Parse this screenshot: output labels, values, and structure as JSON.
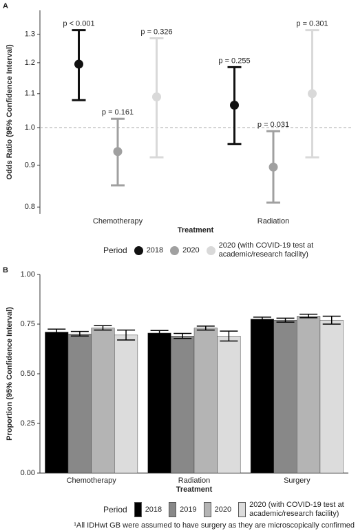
{
  "chart_data": [
    {
      "type": "errorpoint",
      "panel_label": "A",
      "y_label": "Odds Ratio (95% Confidence Interval)",
      "x_label": "Treatment",
      "categories": [
        "Chemotherapy",
        "Radiation"
      ],
      "log_y": true,
      "ylim": [
        0.785,
        1.39
      ],
      "yticks": [
        0.8,
        0.9,
        {
          "value": 1,
          "label": "1.0"
        },
        1.1,
        1.2,
        1.3
      ],
      "ref_line": 1,
      "legend_title": "Period",
      "series": [
        {
          "name": "2018",
          "color": "#111111",
          "values": [
            1.195,
            1.065
          ],
          "lower": [
            1.08,
            0.955
          ],
          "upper": [
            1.315,
            1.185
          ],
          "p_labels": [
            "p < 0.001",
            "p = 0.255"
          ]
        },
        {
          "name": "2020",
          "color": "#a0a0a0",
          "values": [
            0.935,
            0.895
          ],
          "lower": [
            0.85,
            0.81
          ],
          "upper": [
            1.025,
            0.99
          ],
          "p_labels": [
            "p = 0.161",
            "p = 0.031"
          ]
        },
        {
          "name": "2020 (with COVID-19 test at academic/research facility)",
          "color": "#d9d9d9",
          "values": [
            1.09,
            1.1
          ],
          "lower": [
            0.92,
            0.92
          ],
          "upper": [
            1.285,
            1.315
          ],
          "p_labels": [
            "p = 0.326",
            "p = 0.301"
          ]
        }
      ]
    },
    {
      "type": "bar",
      "panel_label": "B",
      "y_label": "Proportion (95% Confidence Interval)",
      "x_label": "Treatment",
      "categories": [
        "Chemotherapy",
        "Radiation",
        "Surgery"
      ],
      "ylim": [
        0,
        1
      ],
      "yticks": [
        {
          "value": 0,
          "label": "0.00"
        },
        {
          "value": 0.25,
          "label": "0.25"
        },
        {
          "value": 0.5,
          "label": "0.50"
        },
        {
          "value": 0.75,
          "label": "0.75"
        },
        {
          "value": 1,
          "label": "1.00"
        }
      ],
      "legend_title": "Period",
      "series": [
        {
          "name": "2018",
          "color": "#000000",
          "values": [
            0.71,
            0.705,
            0.775
          ],
          "lower": [
            0.7,
            0.695,
            0.765
          ],
          "upper": [
            0.725,
            0.718,
            0.785
          ]
        },
        {
          "name": "2019",
          "color": "#888888",
          "values": [
            0.7,
            0.69,
            0.77
          ],
          "lower": [
            0.69,
            0.678,
            0.76
          ],
          "upper": [
            0.713,
            0.703,
            0.78
          ]
        },
        {
          "name": "2020",
          "color": "#b4b4b4",
          "values": [
            0.73,
            0.73,
            0.79
          ],
          "lower": [
            0.72,
            0.72,
            0.782
          ],
          "upper": [
            0.742,
            0.74,
            0.8
          ]
        },
        {
          "name": "2020 (with COVID-19 test at academic/research facility)",
          "color": "#dcdcdc",
          "values": [
            0.695,
            0.69,
            0.77
          ],
          "lower": [
            0.67,
            0.665,
            0.75
          ],
          "upper": [
            0.72,
            0.715,
            0.79
          ]
        }
      ],
      "footnote": "¹All IDHwt GB were assumed to have surgery as they are microscopically confirmed"
    }
  ]
}
